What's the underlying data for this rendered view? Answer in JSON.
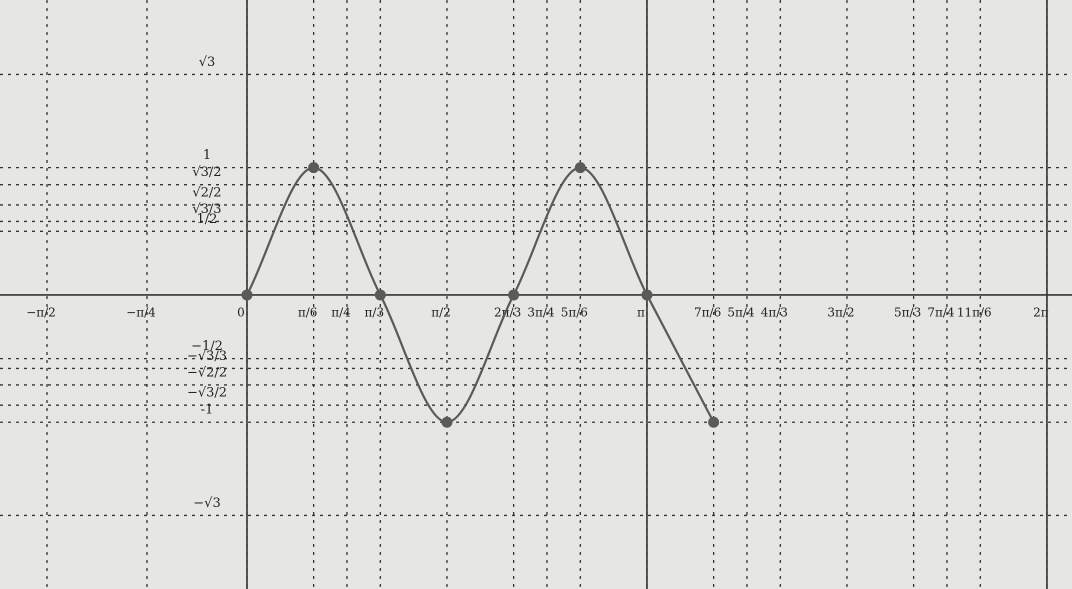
{
  "chart_data": {
    "type": "line",
    "x": [
      0,
      0.5236,
      1.0472,
      1.5708,
      2.0944,
      2.618,
      3.1416,
      3.6652
    ],
    "values": [
      0,
      1,
      0,
      -1,
      0,
      1,
      0,
      -1
    ],
    "color": "#5a5a5a",
    "xlim": [
      -1.94,
      6.48
    ],
    "ylim": [
      -2.31,
      2.317
    ],
    "xticks": [
      {
        "value": -1.5708,
        "label": "−π/2"
      },
      {
        "value": -0.7854,
        "label": "−π/4"
      },
      0,
      {
        "value": 0.5236,
        "label": "π/6"
      },
      {
        "value": 0.7854,
        "label": "π/4"
      },
      {
        "value": 1.0472,
        "label": "π/3"
      },
      {
        "value": 1.5708,
        "label": "π/2"
      },
      {
        "value": 2.0944,
        "label": "2π/3"
      },
      {
        "value": 2.3562,
        "label": "3π/4"
      },
      {
        "value": 2.618,
        "label": "5π/6"
      },
      {
        "value": 3.1416,
        "label": "π"
      },
      {
        "value": 3.6652,
        "label": "7π/6"
      },
      {
        "value": 3.927,
        "label": "5π/4"
      },
      {
        "value": 4.1888,
        "label": "4π/3"
      },
      {
        "value": 4.7124,
        "label": "3π/2"
      },
      {
        "value": 5.236,
        "label": "5π/3"
      },
      {
        "value": 5.4978,
        "label": "7π/4"
      },
      {
        "value": 5.7596,
        "label": "11π/6"
      },
      {
        "value": 6.2832,
        "label": "2π"
      }
    ],
    "yticks": [
      {
        "value": 1.7321,
        "label": "√3"
      },
      1,
      {
        "value": 0.866,
        "label": "√3/2"
      },
      {
        "value": 0.7071,
        "label": "√2/2"
      },
      {
        "value": 0.5774,
        "label": "√3/3"
      },
      {
        "value": 0.5,
        "label": "1/2"
      },
      {
        "value": -0.5,
        "label": "−1/2"
      },
      {
        "value": -0.5774,
        "label": "−√3/3"
      },
      {
        "value": -0.7071,
        "label": "−√2/2"
      },
      {
        "value": -0.866,
        "label": "−√3/2"
      },
      -1,
      {
        "value": -1.7321,
        "label": "−√3"
      }
    ],
    "grid": true,
    "solid_x_lines": [
      0,
      3.1416,
      6.2832
    ]
  }
}
